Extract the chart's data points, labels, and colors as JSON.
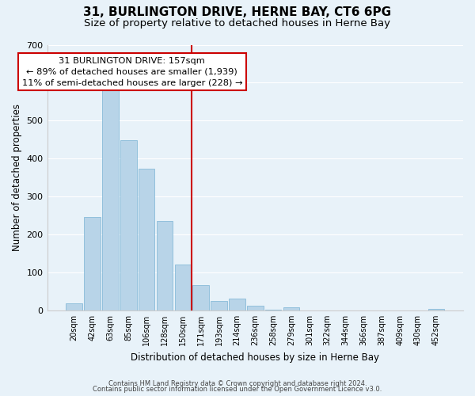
{
  "title": "31, BURLINGTON DRIVE, HERNE BAY, CT6 6PG",
  "subtitle": "Size of property relative to detached houses in Herne Bay",
  "xlabel": "Distribution of detached houses by size in Herne Bay",
  "ylabel": "Number of detached properties",
  "bar_labels": [
    "20sqm",
    "42sqm",
    "63sqm",
    "85sqm",
    "106sqm",
    "128sqm",
    "150sqm",
    "171sqm",
    "193sqm",
    "214sqm",
    "236sqm",
    "258sqm",
    "279sqm",
    "301sqm",
    "322sqm",
    "344sqm",
    "366sqm",
    "387sqm",
    "409sqm",
    "430sqm",
    "452sqm"
  ],
  "bar_values": [
    18,
    247,
    580,
    449,
    374,
    235,
    120,
    67,
    25,
    31,
    13,
    1,
    9,
    0,
    0,
    0,
    0,
    0,
    0,
    0,
    3
  ],
  "bar_color": "#b8d4e8",
  "bar_edge_color": "#7ab3d4",
  "vline_color": "#cc0000",
  "vline_position": 6.5,
  "ylim": [
    0,
    700
  ],
  "yticks": [
    0,
    100,
    200,
    300,
    400,
    500,
    600,
    700
  ],
  "annotation_title": "31 BURLINGTON DRIVE: 157sqm",
  "annotation_line1": "← 89% of detached houses are smaller (1,939)",
  "annotation_line2": "11% of semi-detached houses are larger (228) →",
  "footnote1": "Contains HM Land Registry data © Crown copyright and database right 2024.",
  "footnote2": "Contains public sector information licensed under the Open Government Licence v3.0.",
  "background_color": "#e8f2f9",
  "grid_color": "#ffffff",
  "title_fontsize": 11,
  "subtitle_fontsize": 9.5,
  "ylabel_text": "Number of detached properties"
}
